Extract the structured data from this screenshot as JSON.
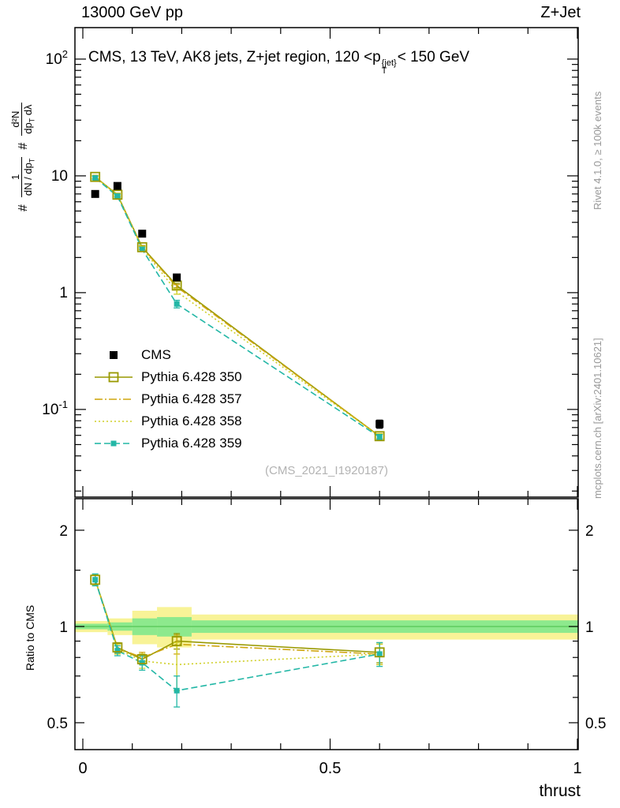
{
  "header": {
    "left": "13000 GeV pp",
    "right": "Z+Jet"
  },
  "panel_title": {
    "pre": "CMS, 13 TeV, AK8 jets, Z+jet region, 120 <p",
    "sup": "{jet}",
    "sub": "T",
    "post": "< 150 GeV"
  },
  "ylabel_main": {
    "hash1": "#",
    "frac1_num": "1",
    "frac1_den_a": "dN / dp",
    "frac1_den_sub": "T",
    "hash2": "#",
    "frac2_num": "d²N",
    "frac2_den_a": "dp",
    "frac2_den_sub": "T",
    "frac2_den_b": " dλ"
  },
  "right_credits": {
    "top": "Rivet 4.1.0, ≥ 100k events",
    "bottom": "mcplots.cern.ch [arXiv:2401.10621]"
  },
  "watermark": "(CMS_2021_I1920187)",
  "ratio_ylabel": "Ratio to CMS",
  "xlabel": "thrust",
  "chart_data": {
    "type": "line",
    "title": "CMS, 13 TeV, AK8 jets, Z+jet region, 120 < pT{jet} < 150 GeV",
    "xlabel": "thrust",
    "xlim": [
      0,
      1
    ],
    "xticks": [
      0,
      0.5,
      1
    ],
    "xminor_step": 0.1,
    "ylog": true,
    "ylim": [
      0.01775,
      186
    ],
    "yticks": [
      100,
      10,
      1,
      0.1
    ],
    "legend_position": "middle-left",
    "x": [
      0.025,
      0.07,
      0.12,
      0.19,
      0.6
    ],
    "series": [
      {
        "name": "CMS",
        "color": "#000000",
        "marker": "filled-square",
        "line": "none",
        "y": [
          7.0,
          8.2,
          3.2,
          1.35,
          0.075
        ],
        "yerr": [
          0.25,
          0.3,
          0.12,
          0.06,
          0.006
        ]
      },
      {
        "name": "Pythia 6.428 350",
        "color": "#999900",
        "marker": "open-square",
        "line": "solid",
        "y": [
          9.8,
          6.9,
          2.45,
          1.15,
          0.059
        ],
        "yerr": [
          0.3,
          0.2,
          0.08,
          0.05,
          0.003
        ],
        "ratio": [
          1.4,
          0.86,
          0.79,
          0.9,
          0.83
        ],
        "ratio_err": [
          0.05,
          0.03,
          0.03,
          0.05,
          0.06
        ]
      },
      {
        "name": "Pythia 6.428 357",
        "color": "#cfa60f",
        "marker": "none",
        "line": "dashdot",
        "y": [
          9.75,
          6.85,
          2.42,
          1.12,
          0.059
        ],
        "yerr": [
          0.3,
          0.2,
          0.08,
          0.05,
          0.003
        ],
        "ratio": [
          1.4,
          0.855,
          0.8,
          0.88,
          0.82
        ],
        "ratio_err": [
          0.05,
          0.03,
          0.03,
          0.06,
          0.06
        ]
      },
      {
        "name": "Pythia 6.428 358",
        "color": "#cfcf26",
        "marker": "none",
        "line": "dotted",
        "y": [
          9.75,
          6.85,
          2.4,
          1.02,
          0.059
        ],
        "yerr": [
          0.3,
          0.2,
          0.08,
          0.05,
          0.003
        ],
        "ratio": [
          1.4,
          0.85,
          0.78,
          0.76,
          0.82
        ],
        "ratio_err": [
          0.05,
          0.03,
          0.04,
          0.13,
          0.06
        ]
      },
      {
        "name": "Pythia 6.428 359",
        "color": "#23b7a6",
        "marker": "filled-square-small",
        "line": "dashed",
        "y": [
          9.6,
          6.7,
          2.35,
          0.8,
          0.058
        ],
        "yerr": [
          0.3,
          0.2,
          0.1,
          0.06,
          0.003
        ],
        "ratio": [
          1.4,
          0.84,
          0.77,
          0.63,
          0.82
        ],
        "ratio_err": [
          0.06,
          0.03,
          0.04,
          0.07,
          0.07
        ]
      }
    ],
    "ratio": {
      "ylabel": "Ratio to CMS",
      "ylog": true,
      "ylim": [
        0.412,
        2.51
      ],
      "yticks": [
        2,
        1,
        0.5
      ],
      "yminor": [
        0.6,
        0.7,
        0.8,
        0.9,
        1.5
      ],
      "band_colors": {
        "yellow": "#f8f397",
        "green": "#8de98d",
        "center_line": "#5ecc5e"
      },
      "bands": {
        "edges": [
          0.0,
          0.05,
          0.1,
          0.15,
          0.22,
          1.0
        ],
        "yellow_lo": [
          0.96,
          0.94,
          0.88,
          0.86,
          0.91
        ],
        "yellow_hi": [
          1.04,
          1.06,
          1.12,
          1.15,
          1.09
        ],
        "green_lo": [
          0.98,
          0.97,
          0.94,
          0.93,
          0.955
        ],
        "green_hi": [
          1.02,
          1.03,
          1.06,
          1.07,
          1.045
        ]
      }
    }
  }
}
